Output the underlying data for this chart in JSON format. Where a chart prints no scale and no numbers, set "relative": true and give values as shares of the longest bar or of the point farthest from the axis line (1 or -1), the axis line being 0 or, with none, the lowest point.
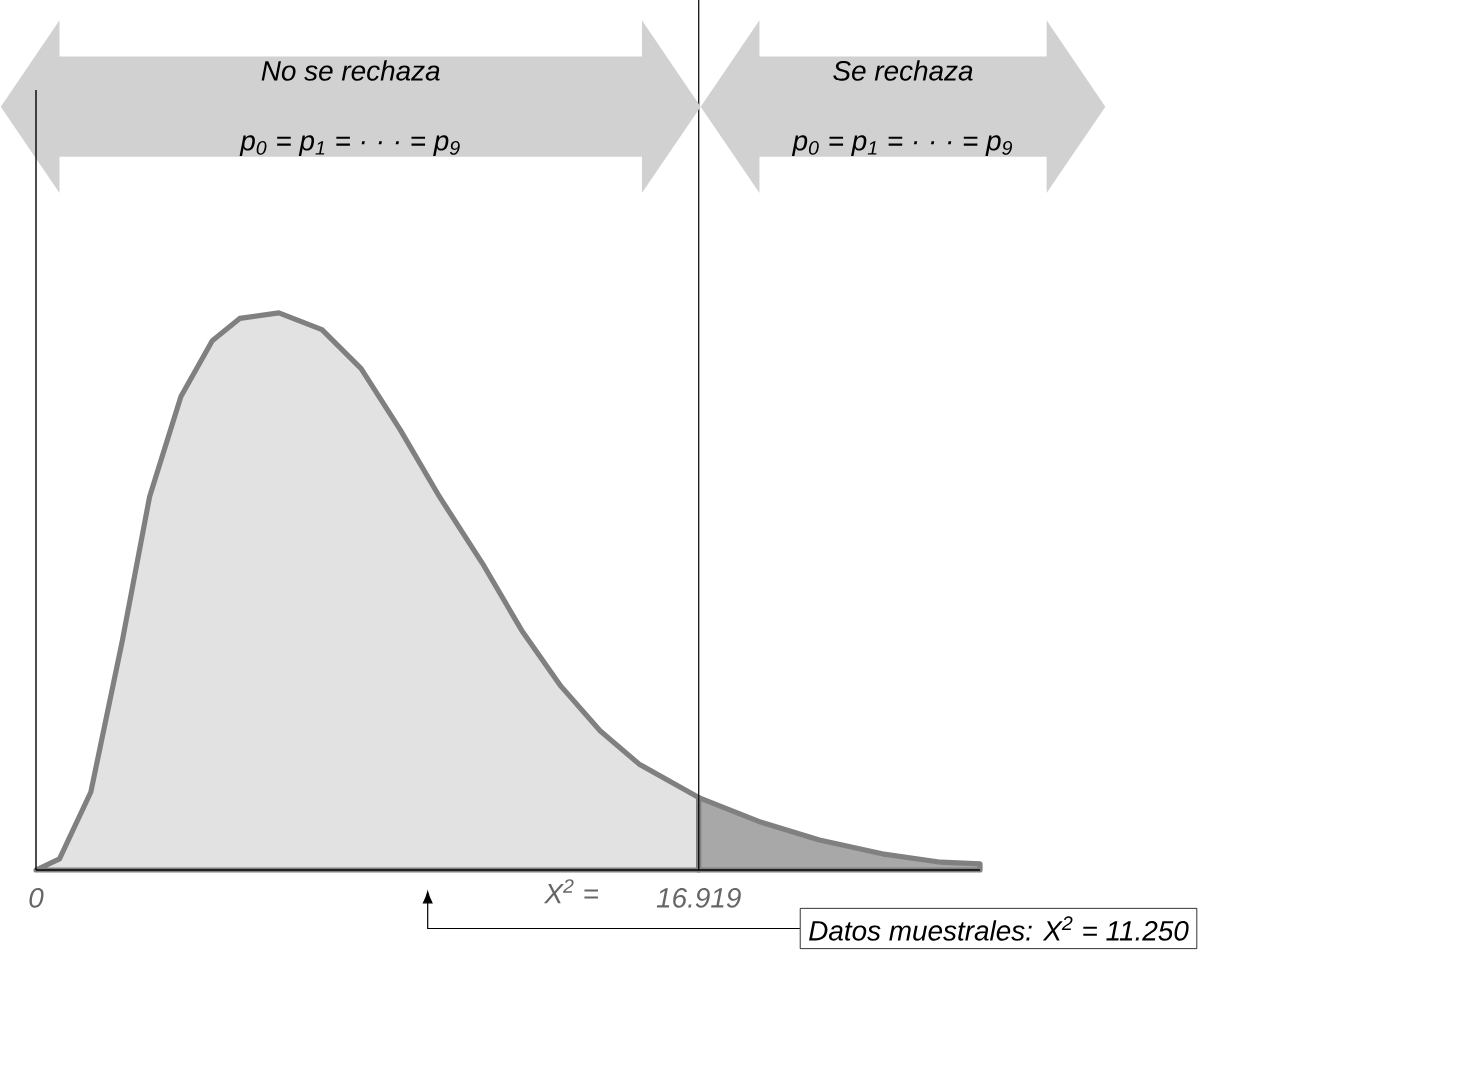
{
  "chart_data": {
    "type": "area",
    "relative": true,
    "xlim": [
      0,
      24.1
    ],
    "xticks": [
      0,
      16.919
    ],
    "series": [
      {
        "color": "#e2e2e2",
        "x": [
          0,
          0.6,
          1.4,
          2.2,
          2.9,
          3.7,
          4.5,
          5.2,
          6.2,
          7.3,
          8.3,
          9.3,
          10.3,
          11.4,
          12.4,
          13.4,
          14.4,
          15.4,
          16.919
        ],
        "values": [
          0,
          0.02,
          0.14,
          0.41,
          0.67,
          0.85,
          0.95,
          0.99,
          1,
          0.97,
          0.9,
          0.79,
          0.67,
          0.55,
          0.43,
          0.33,
          0.25,
          0.19,
          0.13
        ]
      },
      {
        "color": "#a8a8a8",
        "x": [
          16.919,
          18.5,
          20.0,
          21.6,
          23.1,
          24.1
        ],
        "values": [
          0.13,
          0.086,
          0.054,
          0.029,
          0.014,
          0.011
        ]
      }
    ],
    "ref_lines": [
      {
        "axis": "x",
        "value": 16.919
      }
    ],
    "annotations": [
      "No se rechaza",
      "p$_{0}$ = p$_{1}$ = · · · = p$_{9}$",
      "Se rechaza",
      "p$_{0}$ = p$_{1}$ = · · · = p$_{9}$",
      "Datos muestrales: X$^{2}$ = 11.250",
      "X$^{2}$ ="
    ]
  }
}
